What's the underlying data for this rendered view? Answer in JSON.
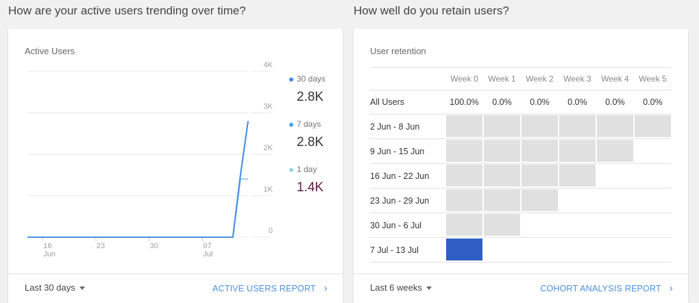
{
  "left": {
    "question": "How are your active users trending over time?",
    "card_title": "Active Users",
    "legend": [
      {
        "label": "30 days",
        "value": "2.8K",
        "color": "#4285f4"
      },
      {
        "label": "7 days",
        "value": "2.8K",
        "color": "#42a5f5"
      },
      {
        "label": "1 day",
        "value": "1.4K",
        "color": "#90d4f0"
      }
    ],
    "range_label": "Last 30 days",
    "report_link": "ACTIVE USERS REPORT"
  },
  "chart_data": {
    "type": "line",
    "title": "Active Users",
    "ylim": [
      0,
      4000
    ],
    "yticks": [
      "0",
      "1K",
      "2K",
      "3K",
      "4K"
    ],
    "ytick_values": [
      0,
      1000,
      2000,
      3000,
      4000
    ],
    "xticks": [
      {
        "day": 2,
        "label": "16",
        "sub": "Jun"
      },
      {
        "day": 9,
        "label": "23",
        "sub": ""
      },
      {
        "day": 16,
        "label": "30",
        "sub": ""
      },
      {
        "day": 23,
        "label": "07",
        "sub": "Jul"
      }
    ],
    "x_days": [
      0,
      27,
      28,
      29
    ],
    "x_note": "day index from 14 Jun",
    "series": [
      {
        "name": "30 days",
        "color": "#4a90e2",
        "values": [
          0,
          0,
          1500,
          2800
        ]
      },
      {
        "name": "7 days",
        "color": "#42a5f5",
        "values": [
          0,
          0,
          1500,
          2800
        ]
      },
      {
        "name": "1 day",
        "color": "#8fd0ef",
        "values": [
          0,
          0,
          1400,
          1400
        ]
      }
    ]
  },
  "right": {
    "question": "How well do you retain users?",
    "card_title": "User retention",
    "weeks": [
      "Week 0",
      "Week 1",
      "Week 2",
      "Week 3",
      "Week 4",
      "Week 5"
    ],
    "all_users_label": "All Users",
    "all_users_values": [
      "100.0%",
      "0.0%",
      "0.0%",
      "0.0%",
      "0.0%",
      "0.0%"
    ],
    "cohorts": [
      {
        "label": "2 Jun - 8 Jun",
        "cells": 6
      },
      {
        "label": "9 Jun - 15 Jun",
        "cells": 5
      },
      {
        "label": "16 Jun - 22 Jun",
        "cells": 4
      },
      {
        "label": "23 Jun - 29 Jun",
        "cells": 3
      },
      {
        "label": "30 Jun - 6 Jul",
        "cells": 2
      },
      {
        "label": "7 Jul - 13 Jul",
        "cells": 1,
        "highlight": true
      }
    ],
    "range_label": "Last 6 weeks",
    "report_link": "COHORT ANALYSIS REPORT"
  }
}
